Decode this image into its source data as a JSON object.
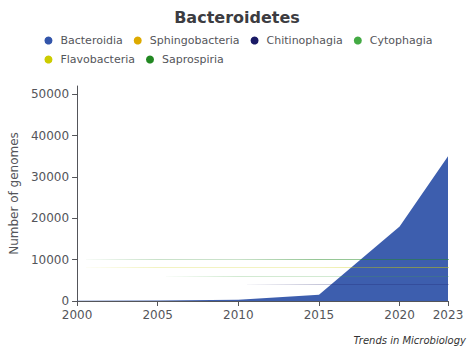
{
  "chart_data": {
    "type": "area",
    "title": "Bacteroidetes",
    "y_label": "Number of genomes",
    "x": [
      2000,
      2005,
      2010,
      2015,
      2020,
      2023
    ],
    "series": [
      {
        "name": "Bacteroidia",
        "color": "#3355aa",
        "values": [
          50,
          100,
          300,
          1500,
          18000,
          35000
        ]
      },
      {
        "name": "Sphingobacteria",
        "color": "#ddaa00",
        "values": [
          30,
          60,
          120,
          300,
          900,
          1800
        ]
      },
      {
        "name": "Chitinophagia",
        "color": "#1a1a66",
        "values": [
          20,
          40,
          80,
          200,
          600,
          1200
        ]
      },
      {
        "name": "Cytophagia",
        "color": "#44aa44",
        "values": [
          20,
          40,
          80,
          200,
          600,
          1200
        ]
      },
      {
        "name": "Flavobacteria",
        "color": "#cccc00",
        "values": [
          40,
          80,
          150,
          400,
          1200,
          2500
        ]
      },
      {
        "name": "Saprospiria",
        "color": "#228822",
        "values": [
          10,
          20,
          40,
          100,
          300,
          600
        ]
      }
    ],
    "xlim": [
      2000,
      2023
    ],
    "xticks": [
      2000,
      2005,
      2010,
      2015,
      2020,
      2023
    ],
    "ylim": [
      0,
      52000
    ],
    "yticks": [
      0,
      10000,
      20000,
      30000,
      40000,
      50000
    ],
    "stacked": true,
    "grid": false,
    "legend": "top",
    "annotations": [
      "Trends in Microbiology"
    ]
  }
}
